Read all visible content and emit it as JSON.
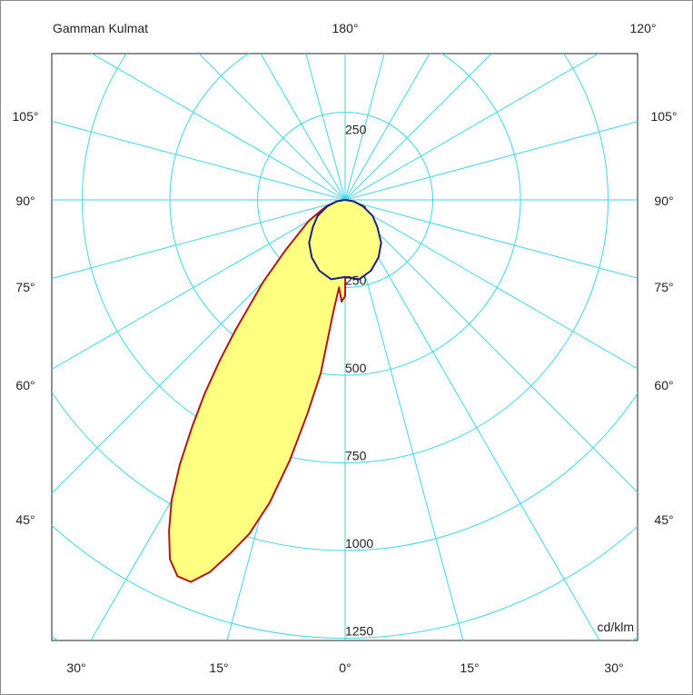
{
  "chart_data": {
    "type": "polar",
    "title": "Gamman Kulmat",
    "unit": "cd/klm",
    "top_labels": {
      "center": "180°",
      "right": "120°"
    },
    "angle_labels": [
      "105°",
      "90°",
      "75°",
      "60°",
      "45°"
    ],
    "bottom_labels": [
      "30°",
      "15°",
      "0°",
      "15°",
      "30°"
    ],
    "ring_values": [
      250,
      500,
      750,
      1000,
      1250
    ],
    "ring_labels_upper": [
      "250"
    ],
    "ring_labels_lower": [
      "250",
      "500",
      "750",
      "1000",
      "1250"
    ],
    "max_value": 1250,
    "series": [
      {
        "plane": "C0-C180",
        "color": "#b01818",
        "fill": "#ffff80",
        "points": [
          [
            0,
            275
          ],
          [
            2,
            290
          ],
          [
            4,
            250
          ],
          [
            6,
            320
          ],
          [
            8,
            500
          ],
          [
            10,
            620
          ],
          [
            12,
            760
          ],
          [
            14,
            890
          ],
          [
            16,
            990
          ],
          [
            18,
            1060
          ],
          [
            20,
            1130
          ],
          [
            22,
            1175
          ],
          [
            24,
            1175
          ],
          [
            26,
            1140
          ],
          [
            28,
            1070
          ],
          [
            30,
            990
          ],
          [
            32,
            890
          ],
          [
            34,
            780
          ],
          [
            36,
            680
          ],
          [
            38,
            580
          ],
          [
            40,
            490
          ],
          [
            42,
            410
          ],
          [
            45,
            330
          ],
          [
            50,
            220
          ],
          [
            60,
            120
          ],
          [
            70,
            60
          ],
          [
            80,
            25
          ],
          [
            90,
            0
          ],
          [
            -90,
            0
          ],
          [
            -80,
            25
          ],
          [
            -70,
            60
          ],
          [
            -60,
            70
          ],
          [
            -50,
            65
          ],
          [
            -40,
            40
          ],
          [
            -30,
            18
          ],
          [
            -20,
            10
          ],
          [
            -10,
            10
          ],
          [
            0,
            275
          ]
        ]
      },
      {
        "plane": "C90-C270",
        "color": "#1a237e",
        "fill": "#ffff80",
        "points": [
          [
            0,
            220
          ],
          [
            10,
            230
          ],
          [
            20,
            215
          ],
          [
            30,
            190
          ],
          [
            40,
            160
          ],
          [
            50,
            120
          ],
          [
            60,
            90
          ],
          [
            70,
            55
          ],
          [
            80,
            25
          ],
          [
            90,
            0
          ],
          [
            -90,
            0
          ],
          [
            -80,
            25
          ],
          [
            -70,
            55
          ],
          [
            -60,
            90
          ],
          [
            -50,
            120
          ],
          [
            -40,
            160
          ],
          [
            -30,
            190
          ],
          [
            -20,
            215
          ],
          [
            -10,
            230
          ],
          [
            0,
            220
          ]
        ]
      }
    ]
  }
}
